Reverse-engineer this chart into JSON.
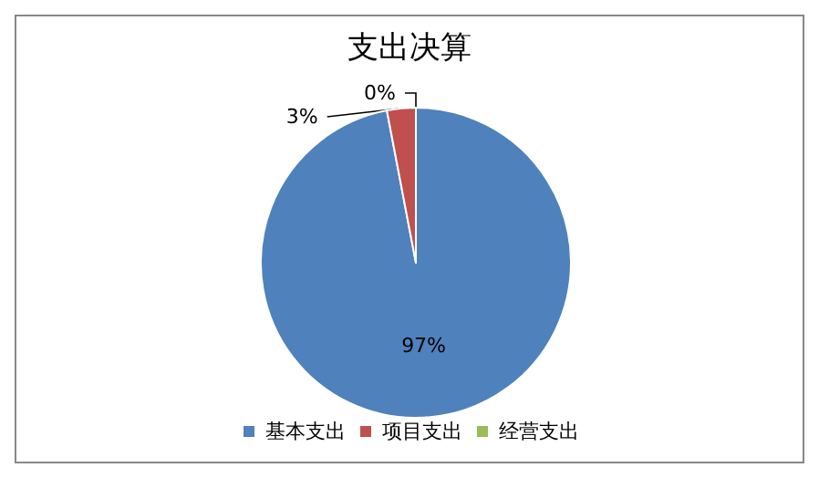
{
  "chart_data": {
    "type": "pie",
    "title": "支出决算",
    "categories": [
      "基本支出",
      "项目支出",
      "经营支出"
    ],
    "values": [
      97,
      3,
      0
    ],
    "value_labels": [
      "97%",
      "3%",
      "0%"
    ],
    "colors": [
      "#4f81bd",
      "#c0504d",
      "#9bbb59"
    ],
    "legend": "bottom"
  }
}
